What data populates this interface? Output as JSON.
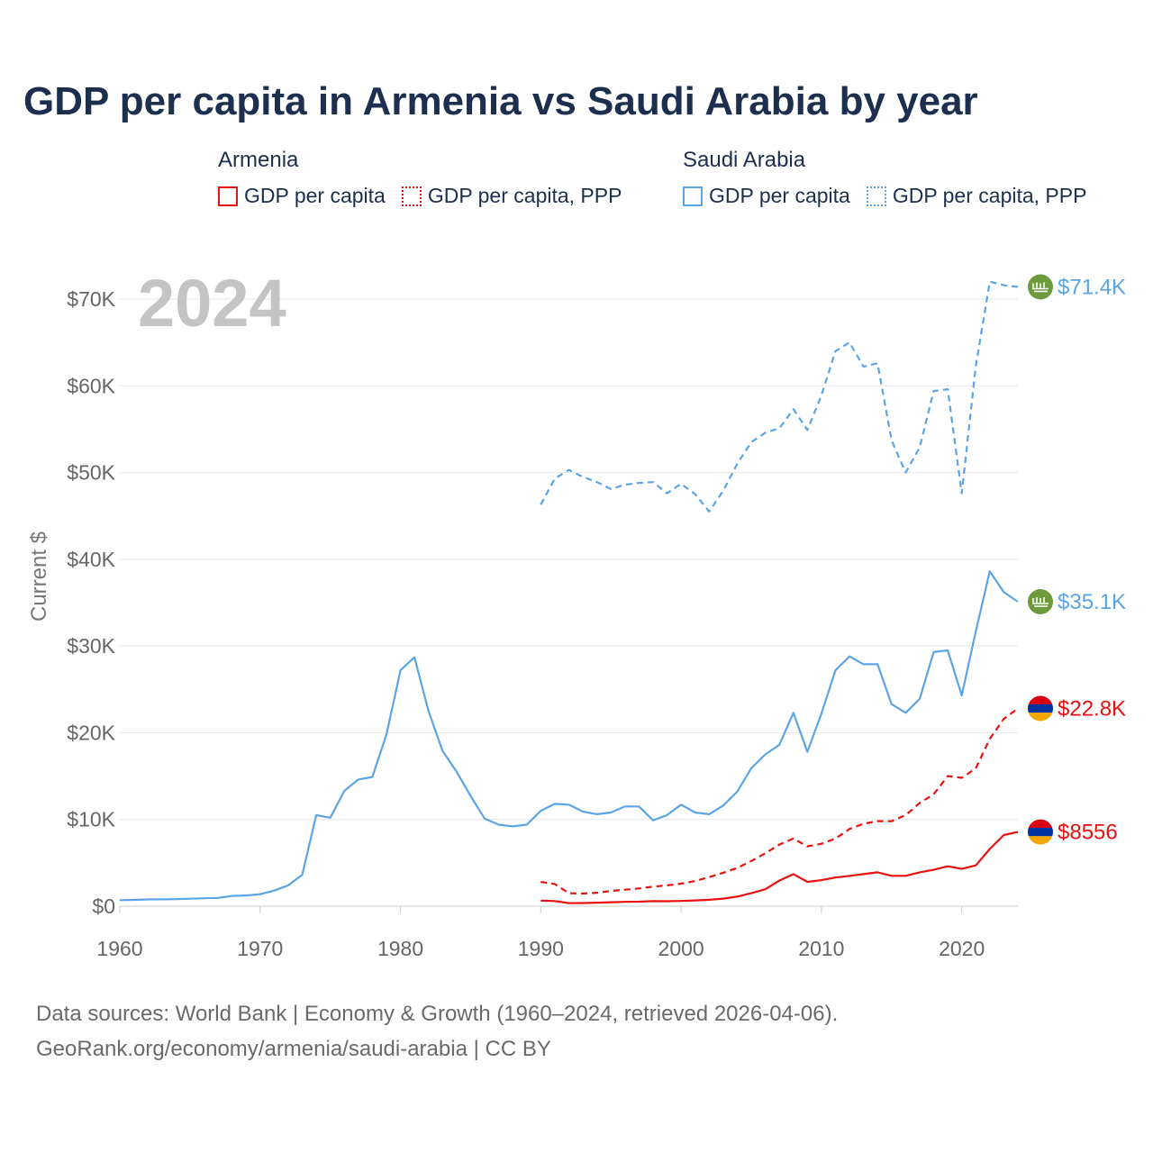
{
  "title": "GDP per capita in Armenia vs Saudi Arabia by year",
  "legend": {
    "armenia": {
      "country": "Armenia",
      "gdp_label": "GDP per capita",
      "ppp_label": "GDP per capita, PPP"
    },
    "saudi": {
      "country": "Saudi Arabia",
      "gdp_label": "GDP per capita",
      "ppp_label": "GDP per capita, PPP"
    }
  },
  "footer": {
    "line1": "Data sources: World Bank | Economy & Growth (1960–2024, retrieved 2026-04-06).",
    "line2": "GeoRank.org/economy/armenia/saudi-arabia | CC BY"
  },
  "chart_data": {
    "type": "line",
    "title": "GDP per capita in Armenia vs Saudi Arabia by year",
    "ylabel": "Current $",
    "xlabel": "",
    "year_watermark": "2024",
    "xlim": [
      1960,
      2024
    ],
    "ylim": [
      0,
      70000
    ],
    "x_ticks": [
      "1960",
      "1970",
      "1980",
      "1990",
      "2000",
      "2010",
      "2020"
    ],
    "x_tick_values": [
      1960,
      1970,
      1980,
      1990,
      2000,
      2010,
      2020
    ],
    "y_ticks": [
      "$0",
      "$10K",
      "$20K",
      "$30K",
      "$40K",
      "$50K",
      "$60K",
      "$70K"
    ],
    "y_tick_values": [
      0,
      10000,
      20000,
      30000,
      40000,
      50000,
      60000,
      70000
    ],
    "grid": true,
    "colors": {
      "armenia": "#e8110f",
      "saudi": "#5ba4e6",
      "axis": "#cccccc",
      "grid": "#e6e6e6"
    },
    "series": [
      {
        "name": "Saudi Arabia GDP per capita",
        "country": "saudi",
        "style": "solid",
        "end_label": "$35.1K",
        "x_start": 1960,
        "values": [
          700,
          730,
          780,
          790,
          810,
          860,
          910,
          960,
          1180,
          1240,
          1380,
          1800,
          2400,
          3600,
          10500,
          10200,
          13300,
          14600,
          14900,
          19800,
          27200,
          28700,
          22500,
          17900,
          15500,
          12700,
          10100,
          9400,
          9200,
          9400,
          11000,
          11800,
          11700,
          10900,
          10600,
          10800,
          11500,
          11500,
          9900,
          10500,
          11700,
          10800,
          10600,
          11600,
          13200,
          15900,
          17500,
          18600,
          22300,
          17800,
          22200,
          27200,
          28800,
          27900,
          27900,
          23300,
          22300,
          23900,
          29300,
          29500,
          24300,
          31700,
          38600,
          36200,
          35100
        ]
      },
      {
        "name": "Saudi Arabia GDP per capita, PPP",
        "country": "saudi",
        "style": "dashed",
        "end_label": "$71.4K",
        "x_start": 1990,
        "values": [
          46300,
          49300,
          50300,
          49500,
          48900,
          48100,
          48600,
          48800,
          48900,
          47600,
          48700,
          47500,
          45500,
          47900,
          51000,
          53500,
          54600,
          55100,
          57300,
          54900,
          58900,
          64000,
          65000,
          62200,
          62600,
          53700,
          50000,
          52900,
          59400,
          59600,
          47600,
          62300,
          72000,
          71600,
          71400
        ]
      },
      {
        "name": "Armenia GDP per capita",
        "country": "armenia",
        "style": "solid",
        "end_label": "$8556",
        "x_start": 1990,
        "values": [
          640,
          590,
          350,
          360,
          400,
          460,
          500,
          520,
          580,
          570,
          600,
          660,
          740,
          870,
          1100,
          1500,
          1950,
          2950,
          3700,
          2800,
          3000,
          3300,
          3500,
          3700,
          3900,
          3500,
          3500,
          3900,
          4200,
          4600,
          4300,
          4700,
          6600,
          8200,
          8556
        ]
      },
      {
        "name": "Armenia GDP per capita, PPP",
        "country": "armenia",
        "style": "dashed",
        "end_label": "$22.8K",
        "x_start": 1990,
        "values": [
          2800,
          2550,
          1500,
          1450,
          1550,
          1750,
          1900,
          2050,
          2250,
          2400,
          2600,
          2900,
          3350,
          3850,
          4400,
          5200,
          6100,
          7100,
          7800,
          6900,
          7200,
          7800,
          8900,
          9500,
          9800,
          9800,
          10500,
          11900,
          12900,
          15000,
          14800,
          15900,
          19300,
          21600,
          22800
        ]
      }
    ]
  }
}
